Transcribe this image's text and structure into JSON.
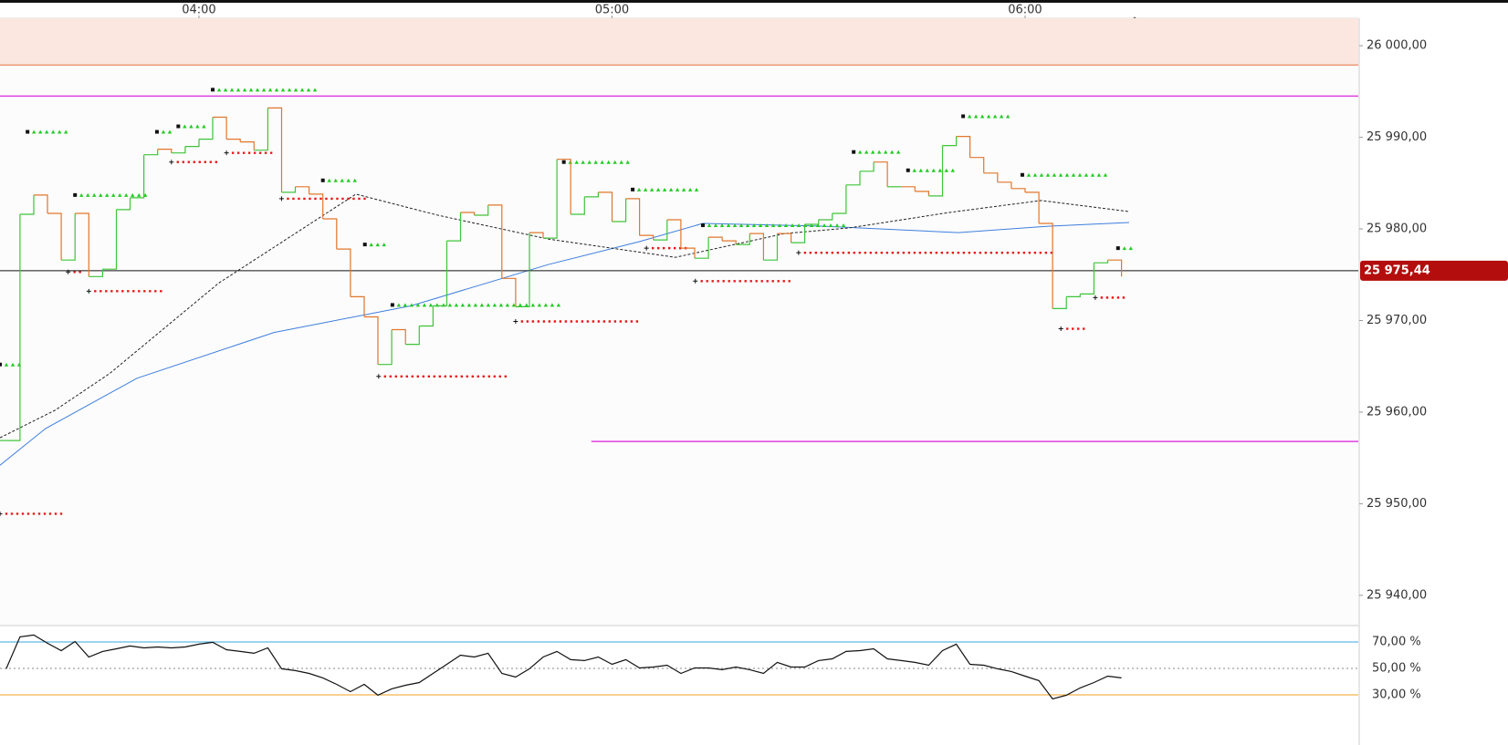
{
  "chart_data": {
    "type": "line",
    "x": [
      212,
      214,
      216,
      218,
      220,
      222,
      224,
      226,
      228,
      230,
      232,
      234,
      236,
      238,
      240,
      242,
      244,
      246,
      248,
      250,
      252,
      254,
      256,
      258,
      260,
      262,
      264,
      266,
      268,
      270,
      272,
      274,
      276,
      278,
      280,
      282,
      284,
      286,
      288,
      290,
      292,
      294,
      296,
      298,
      300,
      302,
      304,
      306,
      308,
      310,
      312,
      314,
      316,
      318,
      320,
      322,
      324,
      326,
      328,
      330,
      332,
      334,
      336,
      338,
      340,
      342,
      344,
      346,
      348,
      350,
      352,
      354,
      356,
      358,
      360,
      362,
      364,
      366,
      368,
      370,
      372,
      374
    ],
    "xlim": [
      211.1,
      408.4
    ],
    "xticks": [
      {
        "value": 240,
        "label": "04:00"
      },
      {
        "value": 300,
        "label": "05:00"
      },
      {
        "value": 360,
        "label": "06:00"
      }
    ],
    "ylim": [
      25936.8,
      26003.0
    ],
    "yticks": [
      {
        "value": 25940,
        "label": "25 940,00"
      },
      {
        "value": 25950,
        "label": "25 950,00"
      },
      {
        "value": 25960,
        "label": "25 960,00"
      },
      {
        "value": 25970,
        "label": "25 970,00"
      },
      {
        "value": 25980,
        "label": "25 980,00"
      },
      {
        "value": 25990,
        "label": "25 990,00"
      },
      {
        "value": 26000,
        "label": "26 000,00"
      }
    ],
    "series": [
      {
        "color": "#e2762b",
        "up_color": "#3fc43a",
        "values": [
          25956.9,
          25981.6,
          25983.7,
          25981.7,
          25976.6,
          25981.7,
          25974.8,
          25975.6,
          25982.1,
          25983.4,
          25988.1,
          25988.7,
          25988.3,
          25989.0,
          25989.8,
          25992.2,
          25989.8,
          25989.5,
          25988.6,
          25993.2,
          25984.0,
          25984.6,
          25983.8,
          25981.1,
          25977.8,
          25972.6,
          25970.4,
          25965.2,
          25969.0,
          25967.4,
          25969.4,
          25971.6,
          25978.7,
          25981.8,
          25981.5,
          25982.6,
          25974.6,
          25971.5,
          25979.6,
          25979.0,
          25987.6,
          25981.6,
          25983.5,
          25984.0,
          25980.8,
          25983.3,
          25979.3,
          25978.8,
          25981.0,
          25977.9,
          25976.8,
          25979.1,
          25978.7,
          25978.3,
          25979.5,
          25976.6,
          25979.5,
          25978.5,
          25980.5,
          25981.0,
          25981.7,
          25984.8,
          25986.3,
          25987.3,
          25984.6,
          25984.6,
          25984.1,
          25983.6,
          25989.1,
          25990.1,
          25987.8,
          25986.1,
          25985.1,
          25984.4,
          25984.0,
          25980.6,
          25971.3,
          25972.6,
          25972.9,
          25976.3,
          25976.6,
          25974.8
        ]
      }
    ],
    "moving_averages": [
      {
        "color": "#3d7ede",
        "dash": false,
        "x": [
          211.1,
          217.7,
          231.0,
          250.9,
          270.8,
          290.7,
          303.9,
          313.2,
          330.4,
          350.3,
          363.6,
          375.1
        ],
        "values": [
          25954.2,
          25958.2,
          25963.7,
          25968.7,
          25971.6,
          25976.1,
          25978.6,
          25980.6,
          25980.3,
          25979.6,
          25980.3,
          25980.7
        ]
      },
      {
        "color": "#222222",
        "dash": true,
        "x": [
          211.1,
          219.1,
          227.0,
          242.9,
          262.8,
          274.7,
          290.7,
          309.2,
          325.1,
          334.4,
          349.0,
          362.3,
          375.1
        ],
        "values": [
          25957.2,
          25960.2,
          25964.2,
          25974.1,
          25983.8,
          25981.5,
          25978.9,
          25976.9,
          25979.5,
          25980.1,
          25981.8,
          25983.1,
          25981.9
        ]
      }
    ],
    "zone": {
      "value": 25997.9,
      "color": "#e2703c",
      "fill": "#fbe7e0"
    },
    "levels": [
      {
        "value": 25994.5,
        "x": [
          211.1,
          408.4
        ],
        "color": "#e040e0"
      },
      {
        "value": 25956.8,
        "x": [
          297.0,
          408.4
        ],
        "color": "#e040e0"
      }
    ],
    "resistance_color": "#22cc22",
    "resistance": [
      {
        "value": 25965.2,
        "x": [
          211.1,
          214.4
        ]
      },
      {
        "value": 25990.6,
        "x": [
          215.1,
          221.4
        ]
      },
      {
        "value": 25983.7,
        "x": [
          222.0,
          233.0
        ]
      },
      {
        "value": 25990.6,
        "x": [
          233.9,
          236.3
        ]
      },
      {
        "value": 25991.2,
        "x": [
          237.0,
          241.3
        ]
      },
      {
        "value": 25995.2,
        "x": [
          242.0,
          257.2
        ]
      },
      {
        "value": 25985.3,
        "x": [
          258.0,
          263.2
        ]
      },
      {
        "value": 25978.3,
        "x": [
          264.1,
          267.5
        ]
      },
      {
        "value": 25971.7,
        "x": [
          268.1,
          292.3
        ]
      },
      {
        "value": 25987.3,
        "x": [
          293.0,
          302.3
        ]
      },
      {
        "value": 25984.3,
        "x": [
          303.0,
          312.5
        ]
      },
      {
        "value": 25980.4,
        "x": [
          313.2,
          334.4
        ]
      },
      {
        "value": 25988.4,
        "x": [
          335.1,
          342.4
        ]
      },
      {
        "value": 25986.4,
        "x": [
          343.0,
          350.3
        ]
      },
      {
        "value": 25992.3,
        "x": [
          351.0,
          358.3
        ]
      },
      {
        "value": 25985.9,
        "x": [
          359.6,
          372.2
        ]
      },
      {
        "value": 25977.9,
        "x": [
          373.5,
          375.5
        ]
      }
    ],
    "support_color": "#e81818",
    "support": [
      {
        "value": 25948.9,
        "x": [
          211.1,
          220.1
        ]
      },
      {
        "value": 25975.3,
        "x": [
          221.0,
          223.3
        ]
      },
      {
        "value": 25973.2,
        "x": [
          224.0,
          235.0
        ]
      },
      {
        "value": 25987.3,
        "x": [
          236.0,
          242.9
        ]
      },
      {
        "value": 25988.3,
        "x": [
          244.0,
          250.9
        ]
      },
      {
        "value": 25983.3,
        "x": [
          252.0,
          264.8
        ]
      },
      {
        "value": 25963.9,
        "x": [
          266.1,
          285.1
        ]
      },
      {
        "value": 25969.9,
        "x": [
          286.0,
          303.9
        ]
      },
      {
        "value": 25977.9,
        "x": [
          305.0,
          310.8
        ]
      },
      {
        "value": 25974.3,
        "x": [
          312.1,
          325.9
        ]
      },
      {
        "value": 25977.4,
        "x": [
          327.1,
          364.3
        ]
      },
      {
        "value": 25969.1,
        "x": [
          365.2,
          368.9
        ]
      },
      {
        "value": 25972.5,
        "x": [
          370.2,
          375.1
        ]
      }
    ],
    "last_price": {
      "value": 25975.44,
      "label": "25 975,44",
      "color": "#b40d0d"
    },
    "rsi": {
      "ylim": [
        21,
        81
      ],
      "yticks": [
        {
          "value": 30,
          "label": "30,00 %",
          "color": "#f0a020"
        },
        {
          "value": 50,
          "label": "50,00 %",
          "color": "#888888"
        },
        {
          "value": 70,
          "label": "70,00 %",
          "color": "#38a8e0"
        }
      ],
      "color": "#111111",
      "values": [
        49.7,
        73.8,
        75.2,
        69.0,
        63.4,
        70.3,
        58.6,
        62.8,
        64.8,
        66.9,
        65.5,
        66.2,
        65.5,
        66.2,
        68.3,
        69.7,
        64.1,
        62.8,
        61.4,
        65.5,
        49.7,
        48.3,
        46.2,
        42.8,
        37.9,
        32.4,
        37.9,
        29.7,
        34.5,
        37.2,
        39.3,
        46.2,
        53.1,
        60.0,
        58.6,
        61.4,
        46.2,
        43.4,
        49.7,
        58.6,
        62.8,
        56.6,
        55.9,
        58.6,
        53.1,
        56.6,
        50.3,
        51.0,
        52.4,
        46.2,
        50.3,
        50.3,
        49.0,
        51.0,
        49.0,
        46.2,
        54.5,
        51.0,
        51.0,
        55.9,
        57.2,
        62.8,
        63.4,
        64.8,
        57.2,
        55.9,
        54.5,
        52.4,
        63.4,
        68.3,
        53.1,
        52.4,
        49.7,
        47.6,
        44.1,
        40.7,
        26.9,
        29.7,
        35.2,
        39.3,
        44.1,
        42.8
      ]
    }
  }
}
